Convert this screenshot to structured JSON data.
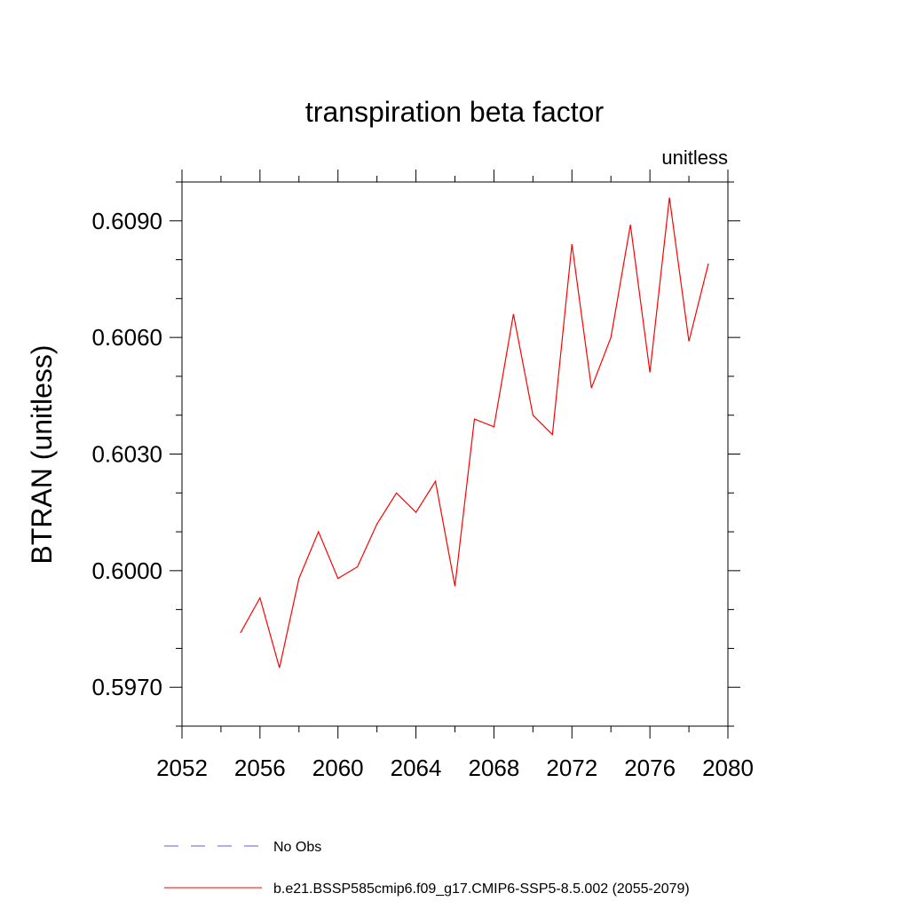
{
  "chart_data": {
    "type": "line",
    "title": "transpiration beta factor",
    "units_label": "unitless",
    "xlabel": "",
    "ylabel": "BTRAN  (unitless)",
    "xlim": [
      2052,
      2080
    ],
    "ylim": [
      0.596,
      0.61
    ],
    "xticks": [
      2052,
      2056,
      2060,
      2064,
      2068,
      2072,
      2076,
      2080
    ],
    "yticks": [
      0.597,
      0.6,
      0.603,
      0.606,
      0.609
    ],
    "ytick_labels": [
      "0.5970",
      "0.6000",
      "0.6030",
      "0.6060",
      "0.6090"
    ],
    "xtick_labels": [
      "2052",
      "2056",
      "2060",
      "2064",
      "2068",
      "2072",
      "2076",
      "2080"
    ],
    "series": [
      {
        "name": "b.e21.BSSP585cmip6.f09_g17.CMIP6-SSP5-8.5.002 (2055-2079)",
        "color": "#ff0000",
        "style": "solid",
        "x": [
          2055,
          2056,
          2057,
          2058,
          2059,
          2060,
          2061,
          2062,
          2063,
          2064,
          2065,
          2066,
          2067,
          2068,
          2069,
          2070,
          2071,
          2072,
          2073,
          2074,
          2075,
          2076,
          2077,
          2078,
          2079
        ],
        "y": [
          0.5984,
          0.5993,
          0.5975,
          0.5998,
          0.601,
          0.5998,
          0.6001,
          0.6012,
          0.602,
          0.6015,
          0.6023,
          0.5996,
          0.6039,
          0.6037,
          0.6066,
          0.604,
          0.6035,
          0.6084,
          0.6047,
          0.606,
          0.6089,
          0.6051,
          0.6096,
          0.6059,
          0.6079
        ]
      }
    ],
    "legend": [
      {
        "label": "No Obs",
        "color": "#6a5acd",
        "style": "dashed"
      },
      {
        "label": "b.e21.BSSP585cmip6.f09_g17.CMIP6-SSP5-8.5.002 (2055-2079)",
        "color": "#ff0000",
        "style": "solid"
      }
    ],
    "legend_position": "bottom"
  }
}
